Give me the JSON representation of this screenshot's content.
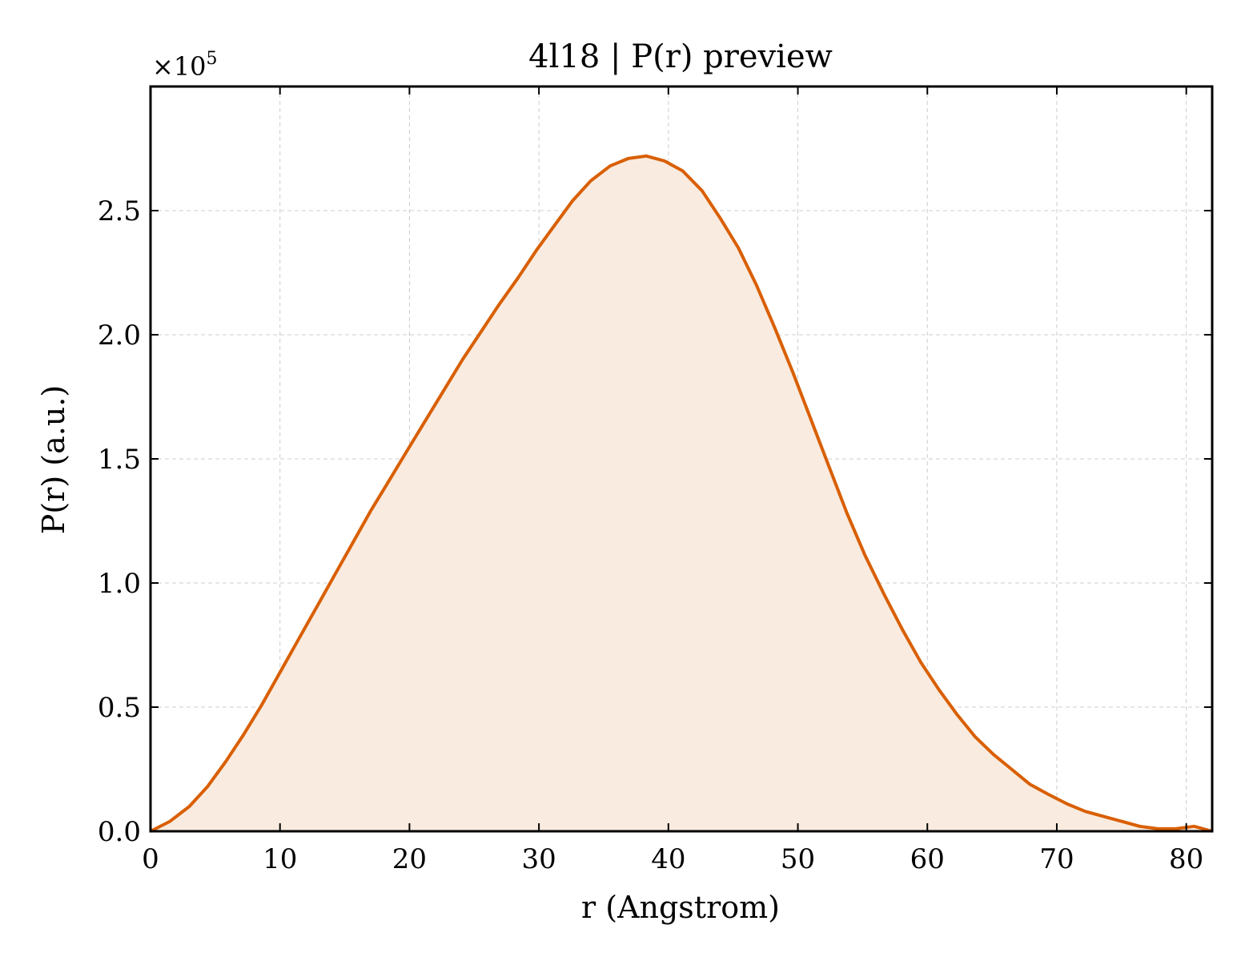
{
  "chart_data": {
    "type": "area",
    "title": "4l18 | P(r) preview",
    "xlabel": "r (Angstrom)",
    "ylabel": "P(r) (a.u.)",
    "y_multiplier_label": "×10",
    "y_multiplier_exponent": "5",
    "xlim": [
      0,
      82
    ],
    "ylim": [
      0,
      3.0
    ],
    "x_ticks": [
      0,
      10,
      20,
      30,
      40,
      50,
      60,
      70,
      80
    ],
    "x_tick_labels": [
      "0",
      "10",
      "20",
      "30",
      "40",
      "50",
      "60",
      "70",
      "80"
    ],
    "y_ticks": [
      0,
      0.5,
      1.0,
      1.5,
      2.0,
      2.5
    ],
    "y_tick_labels": [
      "0.0",
      "0.5",
      "1.0",
      "1.5",
      "2.0",
      "2.5"
    ],
    "grid": true,
    "line_color": "#d95f02",
    "fill_color": "#f9ebe0",
    "series": [
      {
        "x": [
          0,
          1.5,
          3,
          4.4,
          5.8,
          7.2,
          8.6,
          10,
          11.4,
          12.8,
          14.2,
          15.6,
          17,
          18.4,
          19.9,
          21.3,
          22.7,
          24.1,
          25.5,
          26.9,
          28.4,
          29.8,
          31.2,
          32.6,
          34,
          35.5,
          36.9,
          38.3,
          39.7,
          41.1,
          42.6,
          44,
          45.4,
          46.8,
          48.2,
          49.6,
          51,
          52.4,
          53.8,
          55.2,
          56.7,
          58.1,
          59.5,
          60.9,
          62.3,
          63.7,
          65.1,
          66.5,
          67.9,
          69.3,
          70.8,
          72.2,
          73.6,
          75,
          76.4,
          77.8,
          79.2,
          80.6,
          82
        ],
        "y": [
          0,
          0.04,
          0.1,
          0.18,
          0.28,
          0.39,
          0.51,
          0.64,
          0.77,
          0.9,
          1.03,
          1.16,
          1.29,
          1.41,
          1.54,
          1.66,
          1.78,
          1.9,
          2.01,
          2.12,
          2.23,
          2.34,
          2.44,
          2.54,
          2.62,
          2.68,
          2.71,
          2.72,
          2.7,
          2.66,
          2.58,
          2.47,
          2.35,
          2.2,
          2.03,
          1.85,
          1.66,
          1.47,
          1.28,
          1.11,
          0.95,
          0.81,
          0.68,
          0.57,
          0.47,
          0.38,
          0.31,
          0.25,
          0.19,
          0.15,
          0.11,
          0.08,
          0.06,
          0.04,
          0.02,
          0.01,
          0.01,
          0.02,
          0
        ]
      }
    ]
  }
}
